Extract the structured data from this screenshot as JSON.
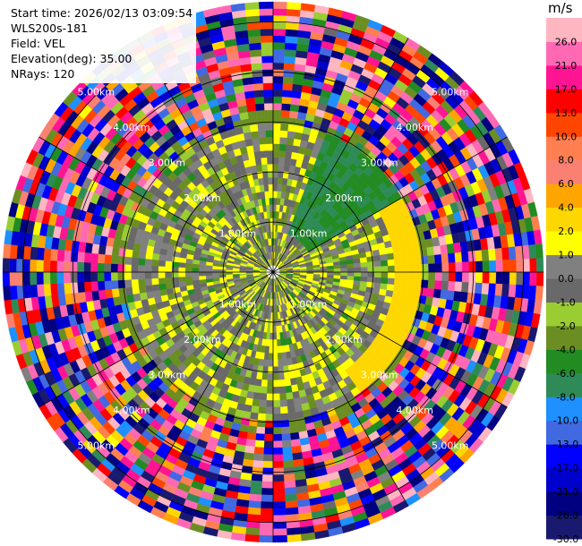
{
  "header": {
    "start_time": "Start time: 2026/02/13 03:09:54",
    "instrument": "WLS200s-181",
    "field": "Field: VEL",
    "elevation": "Elevation(deg): 35.00",
    "nrays": "NRays: 120"
  },
  "chart_data": {
    "type": "heatmap",
    "subtype": "polar-ppi",
    "field": "VEL",
    "units": "m/s",
    "elevation_deg": 35.0,
    "n_rays": 120,
    "range_rings_km": [
      1.0,
      2.0,
      3.0,
      4.0,
      5.0
    ],
    "ring_labels": [
      "1.00km",
      "2.00km",
      "3.00km",
      "4.00km",
      "5.00km"
    ],
    "max_range_km": 5.4,
    "grid": true,
    "colorbar": {
      "title": "m/s",
      "placement": "right",
      "boundaries": [
        -30,
        -26,
        -21,
        -17,
        -13,
        -10,
        -8,
        -6,
        -4,
        -2,
        -1,
        0,
        1,
        2,
        4,
        6,
        8,
        10,
        13,
        17,
        21,
        26,
        30
      ],
      "tick_labels": [
        "26.0",
        "21.0",
        "17.0",
        "13.0",
        "10.0",
        "8.0",
        "6.0",
        "4.0",
        "2.0",
        "1.0",
        "0.0",
        "-1.0",
        "-2.0",
        "-4.0",
        "-6.0",
        "-8.0",
        "-10.0",
        "-13.0",
        "-17.0",
        "-21.0",
        "-26.0",
        "-30.0"
      ],
      "tick_values": [
        26,
        21,
        17,
        13,
        10,
        8,
        6,
        4,
        2,
        1,
        0,
        -1,
        -2,
        -4,
        -6,
        -8,
        -10,
        -13,
        -17,
        -21,
        -26,
        -30
      ],
      "colors": [
        "#191970",
        "#000080",
        "#0000cd",
        "#0000ff",
        "#4169e1",
        "#1e90ff",
        "#2e8b57",
        "#228b22",
        "#6b8e23",
        "#9acd32",
        "#696969",
        "#808080",
        "#ffff00",
        "#ffd700",
        "#ffa500",
        "#fa8072",
        "#ff7f50",
        "#ff4500",
        "#ff0000",
        "#ff1493",
        "#ff69b4",
        "#ffb6c1"
      ]
    },
    "regions": [
      {
        "from_km": 0.0,
        "to_km": 1.0,
        "description": "near-zero, mixed yellow/grey/green"
      },
      {
        "from_km": 1.0,
        "to_km": 3.0,
        "description": "-4 to +4 m/s, yellow/grey/olive"
      },
      {
        "from_km": 3.0,
        "to_km": 5.4,
        "description": "noise, full colour range"
      }
    ]
  }
}
